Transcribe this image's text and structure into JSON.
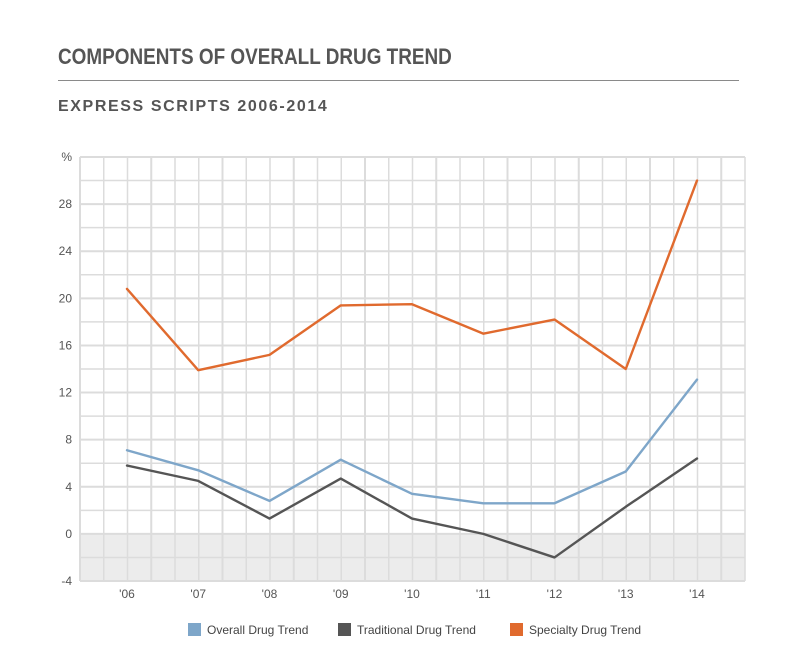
{
  "header": {
    "title": "COMPONENTS OF OVERALL DRUG TREND",
    "subtitle": "EXPRESS SCRIPTS 2006-2014"
  },
  "chart_data": {
    "type": "line",
    "title": "COMPONENTS OF OVERALL DRUG TREND",
    "subtitle": "EXPRESS SCRIPTS 2006-2014",
    "xlabel": "",
    "ylabel": "%",
    "categories": [
      "'06",
      "'07",
      "'08",
      "'09",
      "'10",
      "'11",
      "'12",
      "'13",
      "'14"
    ],
    "ylim": [
      -4,
      32
    ],
    "yticks": [
      -4,
      0,
      4,
      8,
      12,
      16,
      20,
      24,
      28
    ],
    "y_unit_label": "%",
    "grid": true,
    "legend_position": "bottom",
    "series": [
      {
        "name": "Overall Drug Trend",
        "color": "#7ea6c9",
        "values": [
          7.1,
          5.4,
          2.8,
          6.3,
          3.4,
          2.6,
          2.6,
          5.3,
          13.1
        ]
      },
      {
        "name": "Traditional Drug Trend",
        "color": "#555555",
        "values": [
          5.8,
          4.5,
          1.3,
          4.7,
          1.3,
          0.0,
          -2.0,
          2.3,
          6.4
        ]
      },
      {
        "name": "Specialty Drug Trend",
        "color": "#e06a2e",
        "values": [
          20.8,
          13.9,
          15.2,
          19.4,
          19.5,
          17.0,
          18.2,
          14.0,
          30.0
        ]
      }
    ]
  }
}
